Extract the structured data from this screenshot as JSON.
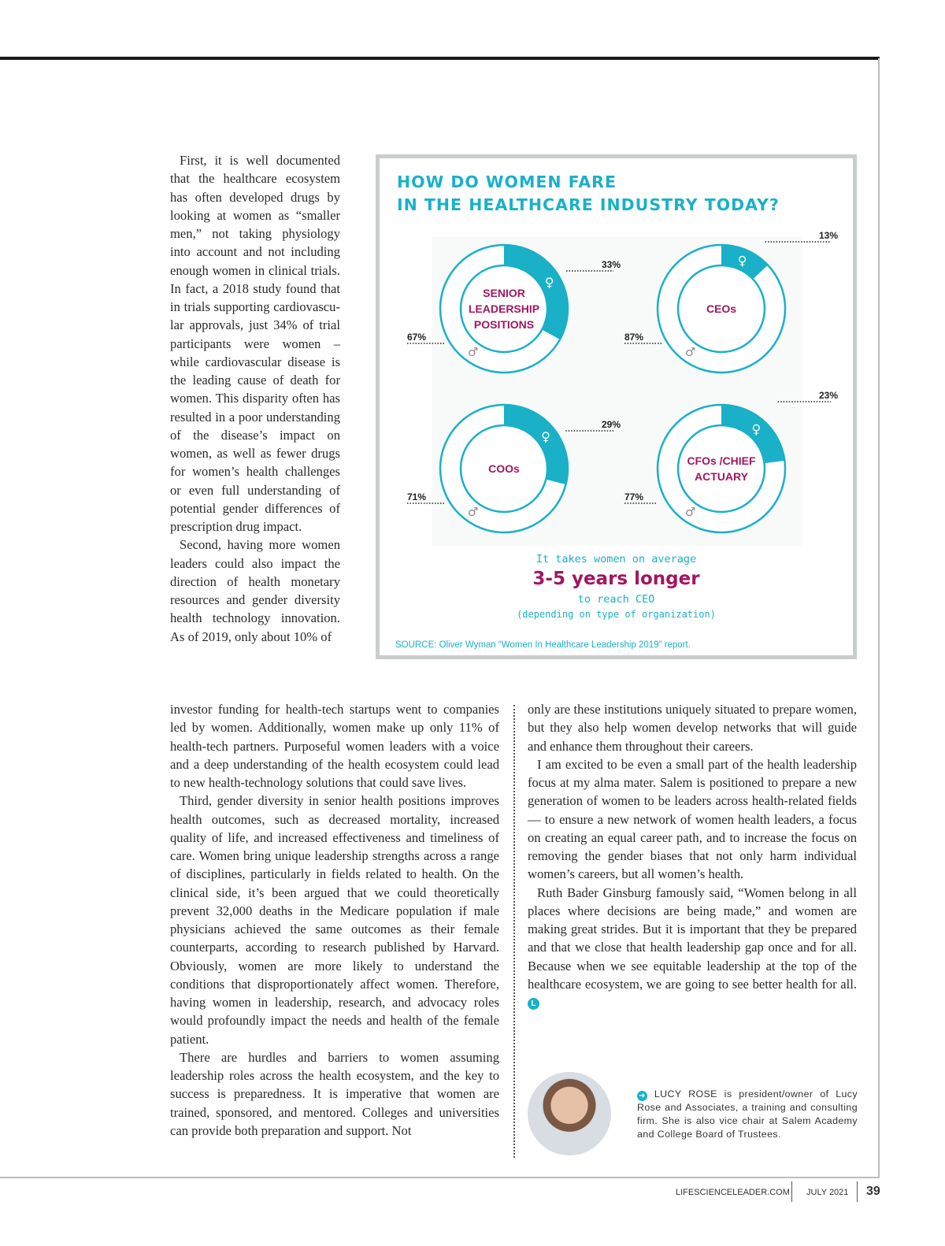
{
  "article": {
    "narrow_paragraphs": [
      "First, it is well document­ed that the healthcare eco­system has often developed drugs by looking at women as “smaller men,” not taking physiology into account and not including enough wom­en in clinical trials. In fact, a 2018 study found that in tri­als supporting cardiovascu­lar approvals, just 34% of tri­al participants were women – while cardiovascular dis­ease is the leading cause of death for women. This dis­parity often has resulted in a poor understanding of the disease’s impact on women, as well as fewer drugs for women’s health challenges or even full understanding of potential gender differences of prescription drug impact.",
      "Second, having more women leaders could also impact the direction of health monetary resources and gender diversity health technology innovation. As of 2019, only about 10% of"
    ],
    "wide_paragraphs": [
      "investor funding for health-tech startups went to com­panies led by women. Additionally, women make up only 11% of health-tech partners. Purposeful women leaders with a voice and a deep understanding of the health ecosystem could lead to new health-technology solutions that could save lives.",
      "Third, gender diversity in senior health positions im­proves health outcomes, such as decreased mortali­ty, increased quality of life, and increased effectiveness and timeliness of care. Women bring unique leadership strengths across a range of disciplines, particularly in fields related to health. On the clinical side, it’s been ar­gued that we could theoretically prevent 32,000 deaths in the Medicare population if male physicians achieved the same outcomes as their female counterparts, according to research published by Harvard. Obviously, women are more likely to understand the conditions that dispropor­tionately affect women. Therefore, having women in lead­ership, research, and advocacy roles would profoundly impact the needs and health of the female patient.",
      "There are hurdles and barriers to women assuming leadership roles across the health ecosystem, and the key to success is preparedness. It is imperative that women are trained, sponsored, and mentored. Colleges and uni­versities can provide both preparation and support. Not"
    ],
    "right_paragraphs": [
      "only are these institutions uniquely situated to prepare women, but they also help women develop networks that will guide and enhance them throughout their careers.",
      "I am excited to be even a small part of the health lead­ership focus at my alma mater. Salem is positioned to prepare a new generation of women to be leaders across health-related fields — to ensure a new network of women health leaders, a focus on creating an equal career path, and to increase the focus on removing the gender biases that not only harm individual women’s careers, but all women’s health.",
      "Ruth Bader Ginsburg famously said, “Women be­long in all places where decisions are being made,” and women are making great strides. But it is import­ant that they be prepared and that we close that health leadership gap once and for all. Because when we see equitable leadership at the top of the healthcare ecosys­tem, we are going to see better health for all."
    ],
    "end_mark": "L"
  },
  "infographic": {
    "title_line1": "HOW DO WOMEN FARE",
    "title_line2": "IN THE HEALTHCARE INDUSTRY TODAY?",
    "colors": {
      "accent": "#1ab0c8",
      "label": "#a3165f"
    },
    "donuts": [
      {
        "label": [
          "SENIOR",
          "LEADERSHIP",
          "POSITIONS"
        ],
        "women_pct": 33,
        "men_pct": 67,
        "women_text": "33%",
        "men_text": "67%"
      },
      {
        "label": [
          "CEOs"
        ],
        "women_pct": 13,
        "men_pct": 87,
        "women_text": "13%",
        "men_text": "87%"
      },
      {
        "label": [
          "COOs"
        ],
        "women_pct": 29,
        "men_pct": 71,
        "women_text": "29%",
        "men_text": "71%"
      },
      {
        "label": [
          "CFOs /CHIEF",
          "ACTUARY"
        ],
        "women_pct": 23,
        "men_pct": 77,
        "women_text": "23%",
        "men_text": "77%"
      }
    ],
    "icons": {
      "women": "female-symbol-icon",
      "men": "male-symbol-icon"
    },
    "tagline": {
      "line1": "It takes women on average",
      "line2": "3-5 years longer",
      "line3": "to reach CEO",
      "line4": "(depending on type of organization)"
    },
    "source": "SOURCE: Oliver Wyman “Women In Healthcare Leadership 2019” report."
  },
  "bio": {
    "icon": "arrow-circle-icon",
    "text": "LUCY ROSE is president/owner of Lucy Rose and Associates, a training and consulting firm. She is also vice chair at Salem Academy and Col­lege Board of Trustees."
  },
  "footer": {
    "site": "LIFESCIENCELEADER.COM",
    "date": "JULY 2021",
    "page": "39"
  }
}
